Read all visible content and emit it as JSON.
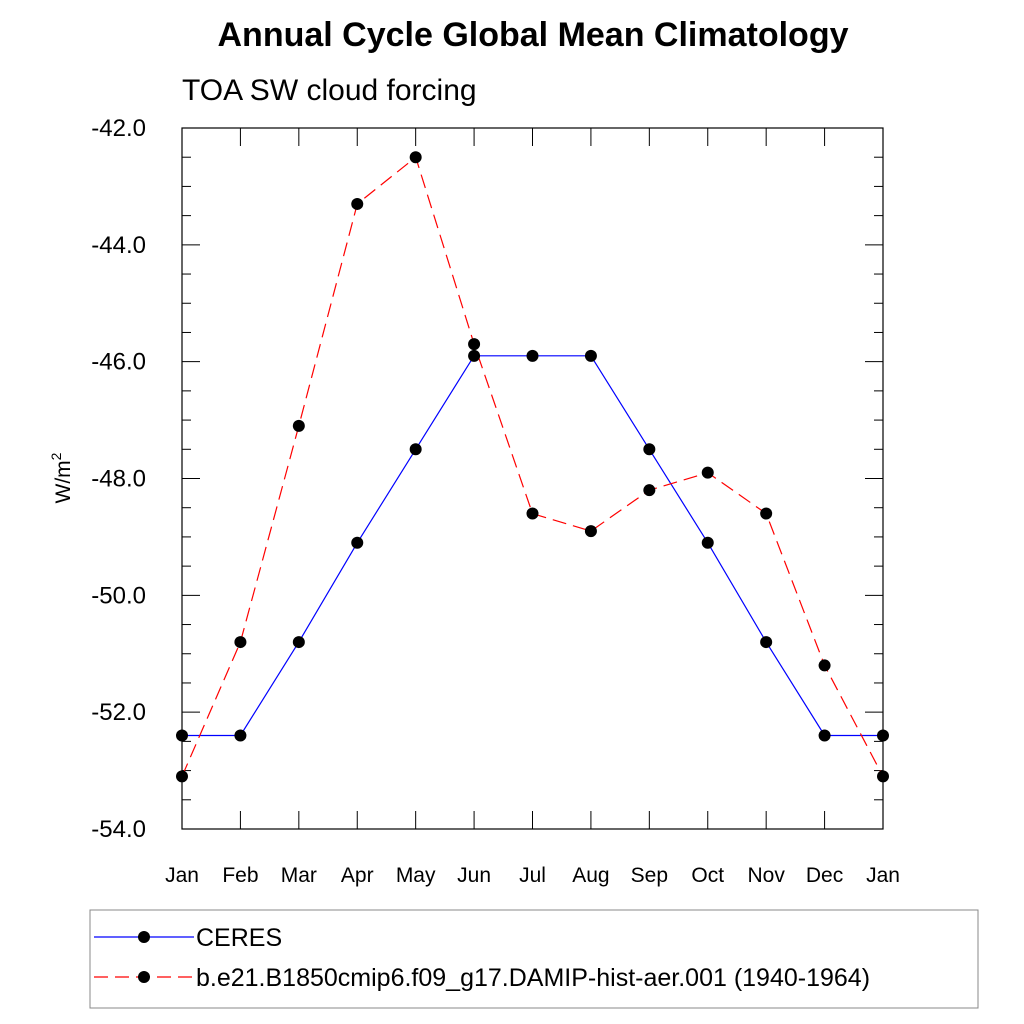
{
  "chart_data": {
    "type": "line",
    "title": "Annual Cycle Global Mean Climatology",
    "subtitle": "TOA SW cloud forcing",
    "xlabel": "",
    "ylabel": "W/m",
    "ylabel_superscript": "2",
    "categories": [
      "Jan",
      "Feb",
      "Mar",
      "Apr",
      "May",
      "Jun",
      "Jul",
      "Aug",
      "Sep",
      "Oct",
      "Nov",
      "Dec",
      "Jan"
    ],
    "ylim": [
      -54.0,
      -42.0
    ],
    "yticks": [
      -54.0,
      -52.0,
      -50.0,
      -48.0,
      -46.0,
      -44.0,
      -42.0
    ],
    "ytick_labels": [
      "-54.0",
      "-52.0",
      "-50.0",
      "-48.0",
      "-46.0",
      "-44.0",
      "-42.0"
    ],
    "grid": false,
    "legend_placement": "bottom",
    "series": [
      {
        "name": "CERES",
        "color": "#0000ff",
        "line_style": "solid",
        "marker": "circle",
        "values": [
          -52.4,
          -52.4,
          -50.8,
          -49.1,
          -47.5,
          -45.9,
          -45.9,
          -45.9,
          -47.5,
          -49.1,
          -50.8,
          -52.4,
          -52.4
        ]
      },
      {
        "name": "b.e21.B1850cmip6.f09_g17.DAMIP-hist-aer.001 (1940-1964)",
        "color": "#ff0000",
        "line_style": "dashed",
        "marker": "circle",
        "values": [
          -53.1,
          -50.8,
          -47.1,
          -43.3,
          -42.5,
          -45.7,
          -48.6,
          -48.9,
          -48.2,
          -47.9,
          -48.6,
          -51.2,
          -53.1
        ]
      }
    ]
  }
}
